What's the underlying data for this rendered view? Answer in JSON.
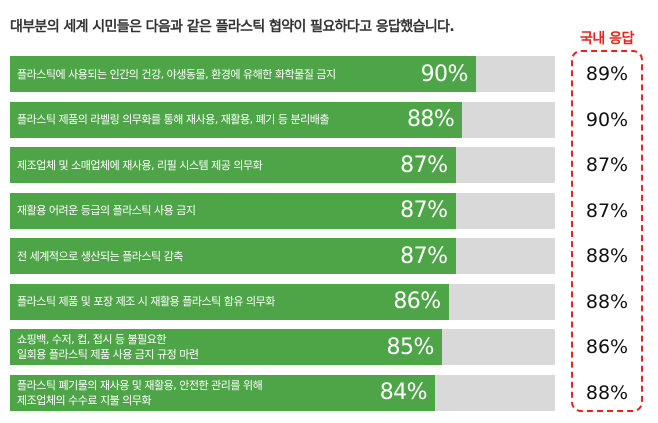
{
  "title": "대부분의 세계 시민들은 다음과 같은 플라스틱 협약이 필요하다고 응답했습니다.",
  "domestic_header": "국내 응답",
  "colors": {
    "bar": "#4ea548",
    "track": "#d9d9d9",
    "accent": "#e8231f"
  },
  "chart_data": {
    "type": "bar",
    "orientation": "horizontal",
    "title": "대부분의 세계 시민들은 다음과 같은 플라스틱 협약이 필요하다고 응답했습니다.",
    "xlim": [
      0,
      100
    ],
    "categories": [
      "플라스틱에 사용되는 인간의 건강, 야생동물, 환경에 유해한 화학물질 금지",
      "플라스틱 제품의 라벨링 의무화를 통해 재사용, 재활용, 폐기 등 분리배출",
      "제조업체 및 소매업체에 재사용, 리필 시스템 제공 의무화",
      "재활용 어려운 등급의 플라스틱 사용 금지",
      "전 세계적으로 생산되는 플라스틱 감축",
      "플라스틱 제품 및 포장 제조 시 재활용 플라스틱 함유 의무화",
      "쇼핑백, 수저, 컵, 접시 등 불필요한\n일회용 플라스틱 제품 사용 금지 규정 마련",
      "플라스틱 폐기물의 재사용 및 재활용, 안전한 관리를 위해\n제조업체의 수수료 지불 의무화"
    ],
    "values": [
      90,
      88,
      87,
      87,
      87,
      86,
      85,
      84
    ],
    "value_labels": [
      "90%",
      "88%",
      "87%",
      "87%",
      "87%",
      "86%",
      "85%",
      "84%"
    ],
    "domestic_values": [
      89,
      90,
      87,
      87,
      88,
      88,
      86,
      88
    ],
    "domestic_labels": [
      "89%",
      "90%",
      "87%",
      "87%",
      "88%",
      "88%",
      "86%",
      "88%"
    ]
  }
}
